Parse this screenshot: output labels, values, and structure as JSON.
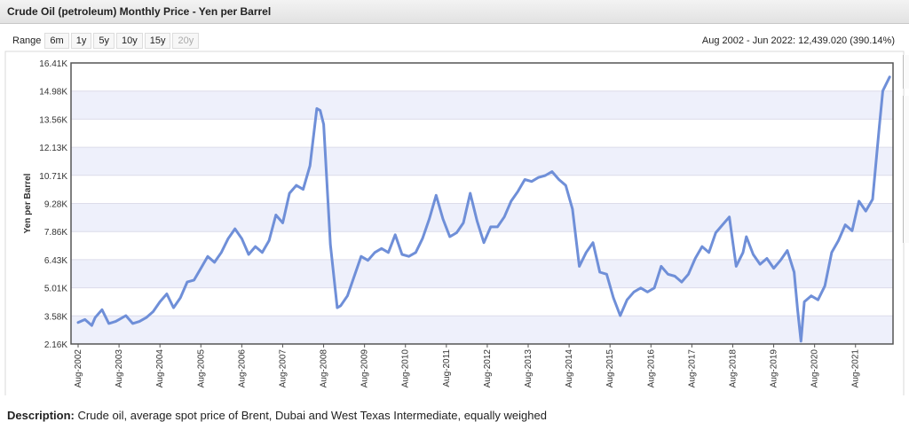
{
  "header": {
    "title": "Crude Oil (petroleum) Monthly Price - Yen per Barrel"
  },
  "range": {
    "label": "Range",
    "buttons": [
      {
        "label": "6m",
        "enabled": true
      },
      {
        "label": "1y",
        "enabled": true
      },
      {
        "label": "5y",
        "enabled": true
      },
      {
        "label": "10y",
        "enabled": true
      },
      {
        "label": "15y",
        "enabled": true
      },
      {
        "label": "20y",
        "enabled": false
      }
    ],
    "summary": "Aug 2002 - Jun 2022: 12,439.020 (390.14%)"
  },
  "description": {
    "label": "Description:",
    "text": "Crude oil, average spot price of Brent, Dubai and West Texas Intermediate, equally weighed"
  },
  "chart_data": {
    "type": "line",
    "title": "Crude Oil (petroleum) Monthly Price - Yen per Barrel",
    "xlabel": "",
    "ylabel": "Yen per Barrel",
    "ylim": [
      2160,
      16410
    ],
    "yticks": [
      "2.16K",
      "3.58K",
      "5.01K",
      "6.43K",
      "7.86K",
      "9.28K",
      "10.71K",
      "12.13K",
      "13.56K",
      "14.98K",
      "16.41K"
    ],
    "xticks": [
      "Aug-2002",
      "Aug-2003",
      "Aug-2004",
      "Aug-2005",
      "Aug-2006",
      "Aug-2007",
      "Aug-2008",
      "Aug-2009",
      "Aug-2010",
      "Aug-2011",
      "Aug-2012",
      "Aug-2013",
      "Aug-2014",
      "Aug-2015",
      "Aug-2016",
      "Aug-2017",
      "Aug-2018",
      "Aug-2019",
      "Aug-2020",
      "Aug-2021"
    ],
    "grid": "horizontal",
    "color": "#6f8fd8",
    "series": [
      {
        "x": [
          "2002-08",
          "2002-10",
          "2002-12",
          "2003-01",
          "2003-03",
          "2003-05",
          "2003-07",
          "2003-08",
          "2003-10",
          "2003-12",
          "2004-02",
          "2004-04",
          "2004-06",
          "2004-08",
          "2004-10",
          "2004-12",
          "2005-02",
          "2005-04",
          "2005-06",
          "2005-08",
          "2005-10",
          "2005-12",
          "2006-02",
          "2006-04",
          "2006-06",
          "2006-08",
          "2006-10",
          "2006-12",
          "2007-02",
          "2007-04",
          "2007-06",
          "2007-08",
          "2007-10",
          "2007-12",
          "2008-02",
          "2008-04",
          "2008-06",
          "2008-07",
          "2008-08",
          "2008-10",
          "2008-12",
          "2009-01",
          "2009-03",
          "2009-05",
          "2009-07",
          "2009-09",
          "2009-11",
          "2010-01",
          "2010-03",
          "2010-05",
          "2010-07",
          "2010-09",
          "2010-11",
          "2011-01",
          "2011-03",
          "2011-05",
          "2011-07",
          "2011-09",
          "2011-11",
          "2012-01",
          "2012-03",
          "2012-05",
          "2012-07",
          "2012-09",
          "2012-11",
          "2013-01",
          "2013-03",
          "2013-05",
          "2013-07",
          "2013-09",
          "2013-11",
          "2014-01",
          "2014-03",
          "2014-05",
          "2014-07",
          "2014-09",
          "2014-11",
          "2015-01",
          "2015-03",
          "2015-05",
          "2015-07",
          "2015-09",
          "2015-11",
          "2016-01",
          "2016-03",
          "2016-05",
          "2016-07",
          "2016-09",
          "2016-11",
          "2017-01",
          "2017-03",
          "2017-05",
          "2017-07",
          "2017-09",
          "2017-11",
          "2018-01",
          "2018-03",
          "2018-05",
          "2018-07",
          "2018-09",
          "2018-11",
          "2018-12",
          "2019-02",
          "2019-04",
          "2019-06",
          "2019-08",
          "2019-10",
          "2019-12",
          "2020-02",
          "2020-03",
          "2020-04",
          "2020-05",
          "2020-07",
          "2020-09",
          "2020-11",
          "2021-01",
          "2021-03",
          "2021-05",
          "2021-07",
          "2021-09",
          "2021-11",
          "2022-01",
          "2022-03",
          "2022-04",
          "2022-06"
        ],
        "y": [
          3250,
          3400,
          3100,
          3500,
          3900,
          3200,
          3300,
          3400,
          3600,
          3200,
          3300,
          3500,
          3800,
          4300,
          4700,
          4000,
          4500,
          5300,
          5400,
          6000,
          6600,
          6300,
          6800,
          7500,
          8000,
          7500,
          6700,
          7100,
          6800,
          7400,
          8700,
          8300,
          9800,
          10200,
          10000,
          11200,
          14100,
          14000,
          13300,
          7200,
          4000,
          4100,
          4600,
          5600,
          6600,
          6400,
          6800,
          7000,
          6800,
          7700,
          6700,
          6600,
          6800,
          7500,
          8500,
          9700,
          8500,
          7600,
          7800,
          8300,
          9800,
          8400,
          7300,
          8100,
          8100,
          8600,
          9400,
          9900,
          10500,
          10400,
          10600,
          10700,
          10900,
          10500,
          10200,
          9000,
          6100,
          6800,
          7300,
          5800,
          5700,
          4500,
          3600,
          4400,
          4800,
          5000,
          4800,
          5000,
          6100,
          5700,
          5600,
          5300,
          5700,
          6500,
          7100,
          6800,
          7800,
          8200,
          8600,
          6100,
          6800,
          7600,
          6700,
          6200,
          6500,
          6000,
          6400,
          6900,
          5800,
          3900,
          2300,
          4300,
          4600,
          4400,
          5100,
          6800,
          7400,
          8200,
          7900,
          9400,
          8900,
          9500,
          13200,
          15000,
          15700
        ]
      }
    ]
  }
}
